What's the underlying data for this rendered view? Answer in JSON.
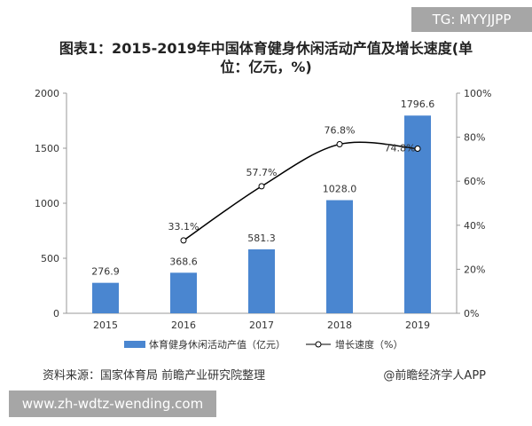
{
  "watermark_top": "TG: MYYJJPP",
  "watermark_bottom": "www.zh-wdtz-wending.com",
  "source": "资料来源：国家体育局 前瞻产业研究院整理",
  "brand": "@前瞻经济学人APP",
  "chart_data": {
    "type": "bar",
    "title": "图表1：2015-2019年中国体育健身休闲活动产值及增长速度(单位：亿元，%)",
    "categories": [
      "2015",
      "2016",
      "2017",
      "2018",
      "2019"
    ],
    "series": [
      {
        "name": "体育健身休闲活动产值（亿元）",
        "type": "bar",
        "axis": "left",
        "color": "#4a86d0",
        "values": [
          276.9,
          368.6,
          581.3,
          1028.0,
          1796.6
        ],
        "labels": [
          "276.9",
          "368.6",
          "581.3",
          "1028.0",
          "1796.6"
        ]
      },
      {
        "name": "增长速度（%）",
        "type": "line",
        "axis": "right",
        "color": "#000000",
        "values": [
          null,
          33.1,
          57.7,
          76.8,
          74.8
        ],
        "labels": [
          "",
          "33.1%",
          "57.7%",
          "76.8%",
          "74.8%"
        ]
      }
    ],
    "y_left": {
      "range": [
        0,
        2000
      ],
      "ticks": [
        "0",
        "500",
        "1000",
        "1500",
        "2000"
      ]
    },
    "y_right": {
      "range": [
        0,
        100
      ],
      "ticks": [
        "0%",
        "20%",
        "40%",
        "60%",
        "80%",
        "100%"
      ]
    },
    "grid": false,
    "legend": "bottom"
  }
}
